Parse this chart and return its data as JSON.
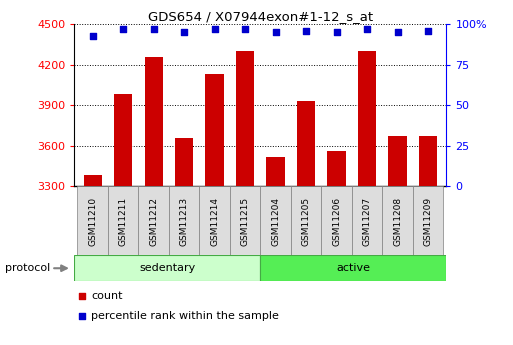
{
  "title": "GDS654 / X07944exon#1-12_s_at",
  "samples": [
    "GSM11210",
    "GSM11211",
    "GSM11212",
    "GSM11213",
    "GSM11214",
    "GSM11215",
    "GSM11204",
    "GSM11205",
    "GSM11206",
    "GSM11207",
    "GSM11208",
    "GSM11209"
  ],
  "counts": [
    3380,
    3980,
    4260,
    3655,
    4130,
    4300,
    3520,
    3930,
    3560,
    4300,
    3670,
    3670
  ],
  "percentiles": [
    93,
    97,
    97,
    95,
    97,
    97,
    95,
    96,
    95,
    97,
    95,
    96
  ],
  "groups": [
    "sedentary",
    "sedentary",
    "sedentary",
    "sedentary",
    "sedentary",
    "sedentary",
    "active",
    "active",
    "active",
    "active",
    "active",
    "active"
  ],
  "bar_color": "#cc0000",
  "dot_color": "#0000cc",
  "ylim_left": [
    3300,
    4500
  ],
  "ylim_right": [
    0,
    100
  ],
  "yticks_left": [
    3300,
    3600,
    3900,
    4200,
    4500
  ],
  "yticks_right": [
    0,
    25,
    50,
    75,
    100
  ],
  "sed_color": "#ccffcc",
  "act_color": "#55ee55",
  "legend_count_label": "count",
  "legend_pct_label": "percentile rank within the sample",
  "protocol_label": "protocol",
  "xlabel_bg": "#dddddd"
}
